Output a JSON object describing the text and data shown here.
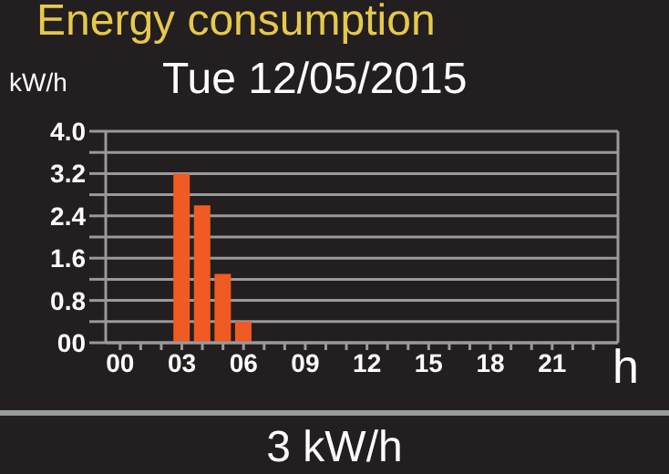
{
  "chart_data": {
    "type": "bar",
    "title": "Energy consumption",
    "subtitle": "Tue 12/05/2015",
    "ylabel": "kW/h",
    "xlabel": "h",
    "annotations": [
      "3 kW/h"
    ],
    "x": [
      3,
      4,
      5,
      6
    ],
    "values": [
      3.2,
      2.6,
      1.3,
      0.4
    ],
    "color": "#f05a23",
    "xlim": [
      -0.7,
      24.2
    ],
    "xticks": [
      {
        "value": 0,
        "label": "00"
      },
      {
        "value": 1,
        "label": null
      },
      {
        "value": 2,
        "label": null
      },
      {
        "value": 3,
        "label": "03"
      },
      {
        "value": 4,
        "label": null
      },
      {
        "value": 5,
        "label": null
      },
      {
        "value": 6,
        "label": "06"
      },
      {
        "value": 7,
        "label": null
      },
      {
        "value": 8,
        "label": null
      },
      {
        "value": 9,
        "label": "09"
      },
      {
        "value": 10,
        "label": null
      },
      {
        "value": 11,
        "label": null
      },
      {
        "value": 12,
        "label": "12"
      },
      {
        "value": 13,
        "label": null
      },
      {
        "value": 14,
        "label": null
      },
      {
        "value": 15,
        "label": "15"
      },
      {
        "value": 16,
        "label": null
      },
      {
        "value": 17,
        "label": null
      },
      {
        "value": 18,
        "label": "18"
      },
      {
        "value": 19,
        "label": null
      },
      {
        "value": 20,
        "label": null
      },
      {
        "value": 21,
        "label": "21"
      },
      {
        "value": 22,
        "label": null
      },
      {
        "value": 23,
        "label": null
      }
    ],
    "ylim": [
      0,
      4
    ],
    "yticks": [
      {
        "value": 0,
        "label": "00"
      },
      {
        "value": 0.4,
        "label": null
      },
      0.8,
      {
        "value": 1.2,
        "label": null
      },
      1.6,
      {
        "value": 2,
        "label": null
      },
      2.4,
      {
        "value": 2.8,
        "label": null
      },
      3.2,
      {
        "value": 3.6,
        "label": null
      },
      {
        "value": 4,
        "label": "4.0"
      }
    ],
    "grid": "y"
  }
}
